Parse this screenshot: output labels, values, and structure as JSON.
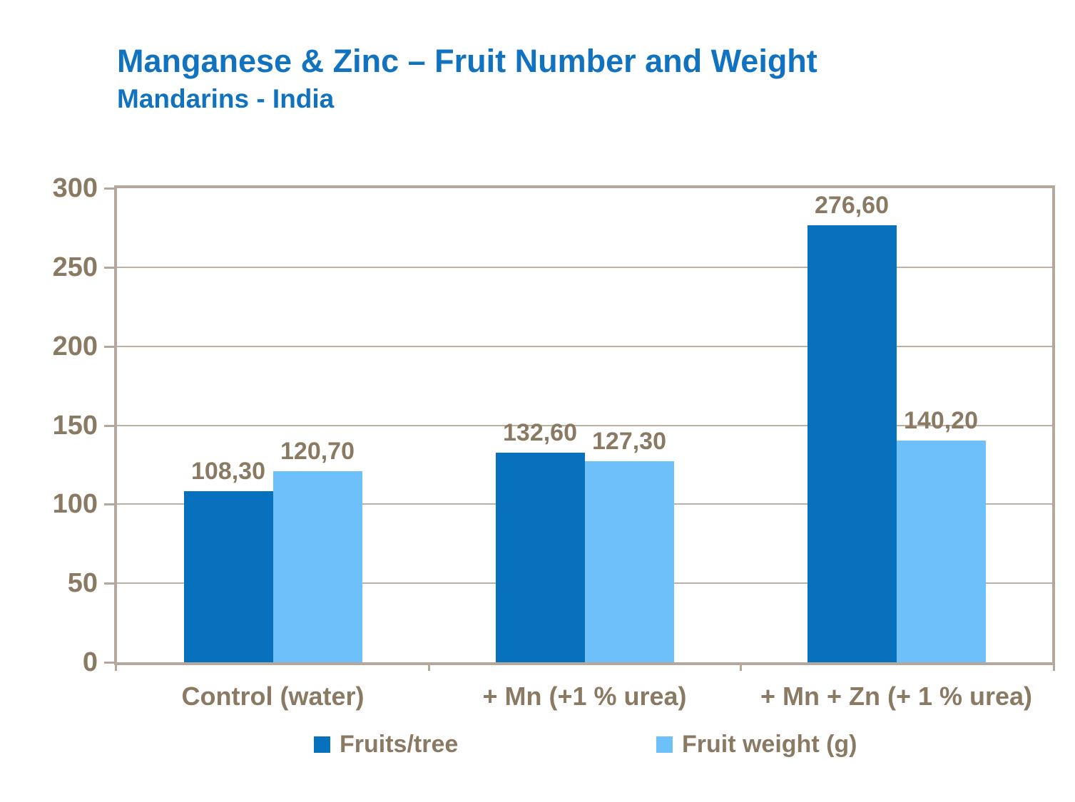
{
  "header": {
    "title": "Manganese & Zinc – Fruit Number and Weight",
    "subtitle": "Mandarins - India"
  },
  "chart_data": {
    "type": "bar",
    "title": "Manganese & Zinc – Fruit Number and Weight",
    "subtitle": "Mandarins - India",
    "categories": [
      "Control (water)",
      "+ Mn (+1 % urea)",
      "+ Mn + Zn (+ 1 % urea)"
    ],
    "series": [
      {
        "name": "Fruits/tree",
        "color": "#0771BE",
        "values": [
          108.3,
          132.6,
          276.6
        ],
        "labels": [
          "108,30",
          "132,60",
          "276,60"
        ]
      },
      {
        "name": "Fruit weight (g)",
        "color": "#6DC0F9",
        "values": [
          120.7,
          127.3,
          140.2
        ],
        "labels": [
          "120,70",
          "127,30",
          "140,20"
        ]
      }
    ],
    "ylim": [
      0,
      300
    ],
    "yticks": [
      0,
      50,
      100,
      150,
      200,
      250,
      300
    ],
    "grid": true,
    "gridlines_at": [
      50,
      100,
      150,
      200,
      250
    ],
    "legend_position": "bottom",
    "decimal_separator": ","
  },
  "colors": {
    "title_blue": "#1173BF",
    "axis_frame": "#B3A89B",
    "gridline": "#BCB1A4",
    "label_brown": "#8A7A63",
    "series_dark_blue": "#0771BE",
    "series_light_blue": "#6DC0F9",
    "background": "#FFFFFF"
  }
}
